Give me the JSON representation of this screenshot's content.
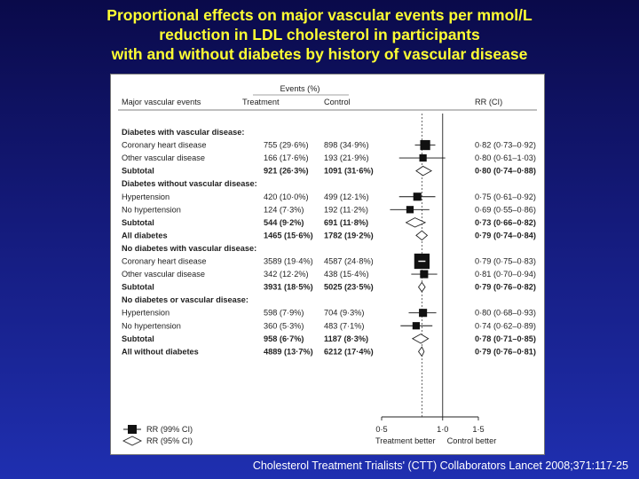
{
  "slide": {
    "title_lines": [
      "Proportional effects on major vascular events per mmol/L",
      "reduction in LDL cholesterol in participants",
      "with and without diabetes by history of vascular disease"
    ],
    "citation": "Cholesterol Treatment Trialists' (CTT) Collaborators Lancet 2008;371:117-25"
  },
  "colors": {
    "background": "#141a7a",
    "title": "#ffff33",
    "panel": "#ffffff",
    "text": "#222222"
  },
  "chart_data": {
    "type": "forest",
    "headers": {
      "events_group": "Events (%)",
      "label": "Major vascular events",
      "treatment": "Treatment",
      "control": "Control",
      "rr": "RR (CI)"
    },
    "x_axis": {
      "scale": "log",
      "range": [
        0.45,
        2.0
      ],
      "ticks": [
        0.5,
        1.0,
        1.5
      ],
      "tick_labels": [
        "0·5",
        "1·0",
        "1·5"
      ],
      "left_label": "Treatment better",
      "right_label": "Control better"
    },
    "overall_reference": 0.79,
    "legend": [
      {
        "marker": "square",
        "label": "RR (99% CI)"
      },
      {
        "marker": "diamond",
        "label": "RR (95% CI)"
      }
    ],
    "rows": [
      {
        "kind": "header",
        "label": "Diabetes with vascular disease:"
      },
      {
        "kind": "item",
        "label": "Coronary heart disease",
        "treatment": "755 (29·6%)",
        "control": "898 (34·9%)",
        "rr_text": "0·82 (0·73–0·92)",
        "rr": 0.82,
        "lo": 0.73,
        "hi": 0.92,
        "weight": 7
      },
      {
        "kind": "item",
        "label": "Other vascular disease",
        "treatment": "166 (17·6%)",
        "control": "193 (21·9%)",
        "rr_text": "0·80 (0·61–1·03)",
        "rr": 0.8,
        "lo": 0.61,
        "hi": 1.03,
        "weight": 3
      },
      {
        "kind": "subtotal",
        "label": "Subtotal",
        "treatment": "921 (26·3%)",
        "control": "1091 (31·6%)",
        "rr_text": "0·80 (0·74–0·88)",
        "rr": 0.8,
        "lo": 0.74,
        "hi": 0.88
      },
      {
        "kind": "header",
        "label": "Diabetes without vascular disease:"
      },
      {
        "kind": "item",
        "label": "Hypertension",
        "treatment": "420 (10·0%)",
        "control": "499 (12·1%)",
        "rr_text": "0·75 (0·61–0·92)",
        "rr": 0.75,
        "lo": 0.61,
        "hi": 0.92,
        "weight": 4
      },
      {
        "kind": "item",
        "label": "No hypertension",
        "treatment": "124 (7·3%)",
        "control": "192 (11·2%)",
        "rr_text": "0·69 (0·55–0·86)",
        "rr": 0.69,
        "lo": 0.55,
        "hi": 0.86,
        "weight": 3
      },
      {
        "kind": "subtotal",
        "label": "Subtotal",
        "treatment": "544 (9·2%)",
        "control": "691 (11·8%)",
        "rr_text": "0·73 (0·66–0·82)",
        "rr": 0.73,
        "lo": 0.66,
        "hi": 0.82
      },
      {
        "kind": "total",
        "label": "All diabetes",
        "treatment": "1465 (15·6%)",
        "control": "1782 (19·2%)",
        "rr_text": "0·79 (0·74–0·84)",
        "rr": 0.79,
        "lo": 0.74,
        "hi": 0.84
      },
      {
        "kind": "header",
        "label": "No diabetes with vascular disease:"
      },
      {
        "kind": "item",
        "label": "Coronary heart disease",
        "treatment": "3589 (19·4%)",
        "control": "4587 (24·8%)",
        "rr_text": "0·79 (0·75–0·83)",
        "rr": 0.79,
        "lo": 0.75,
        "hi": 0.83,
        "weight": 20
      },
      {
        "kind": "item",
        "label": "Other vascular disease",
        "treatment": "342 (12·2%)",
        "control": "438 (15·4%)",
        "rr_text": "0·81 (0·70–0·94)",
        "rr": 0.81,
        "lo": 0.7,
        "hi": 0.94,
        "weight": 4
      },
      {
        "kind": "subtotal",
        "label": "Subtotal",
        "treatment": "3931 (18·5%)",
        "control": "5025 (23·5%)",
        "rr_text": "0·79 (0·76–0·82)",
        "rr": 0.79,
        "lo": 0.76,
        "hi": 0.82
      },
      {
        "kind": "header",
        "label": "No diabetes or vascular disease:"
      },
      {
        "kind": "item",
        "label": "Hypertension",
        "treatment": "598 (7·9%)",
        "control": "704 (9·3%)",
        "rr_text": "0·80 (0·68–0·93)",
        "rr": 0.8,
        "lo": 0.68,
        "hi": 0.93,
        "weight": 4
      },
      {
        "kind": "item",
        "label": "No hypertension",
        "treatment": "360 (5·3%)",
        "control": "483 (7·1%)",
        "rr_text": "0·74 (0·62–0·89)",
        "rr": 0.74,
        "lo": 0.62,
        "hi": 0.89,
        "weight": 3
      },
      {
        "kind": "subtotal",
        "label": "Subtotal",
        "treatment": "958 (6·7%)",
        "control": "1187 (8·3%)",
        "rr_text": "0·78 (0·71–0·85)",
        "rr": 0.78,
        "lo": 0.71,
        "hi": 0.85
      },
      {
        "kind": "total",
        "label": "All without diabetes",
        "treatment": "4889 (13·7%)",
        "control": "6212 (17·4%)",
        "rr_text": "0·79 (0·76–0·81)",
        "rr": 0.79,
        "lo": 0.76,
        "hi": 0.81
      }
    ]
  }
}
